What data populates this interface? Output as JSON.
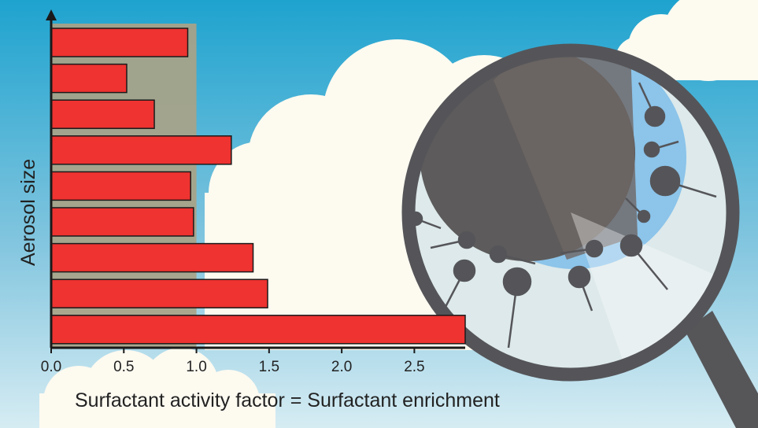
{
  "chart_data": {
    "type": "bar",
    "orientation": "horizontal",
    "title": "",
    "xlabel": "Surfactant activity factor = Surfactant enrichment",
    "ylabel": "Aerosol size",
    "xlim": [
      0,
      2.85
    ],
    "xticks": [
      "0.0",
      "0.5",
      "1.0",
      "1.5",
      "2.0",
      "2.5"
    ],
    "grid": false,
    "highlight_band": [
      0,
      1.0
    ],
    "bar_color": "#ee3330",
    "values": [
      0.94,
      0.52,
      0.71,
      1.24,
      0.96,
      0.98,
      1.39,
      1.49,
      2.85
    ]
  },
  "colors": {
    "sky_top": "#1ea3cf",
    "sky_bottom": "#d6ecf3",
    "cloud": "#fdfaf0",
    "band": "#a9a387",
    "lens_ring": "#555559",
    "particle": "#555559",
    "lens_blue": "#8cc4ea"
  },
  "illustration": {
    "icon": "magnifying-glass-icon"
  }
}
